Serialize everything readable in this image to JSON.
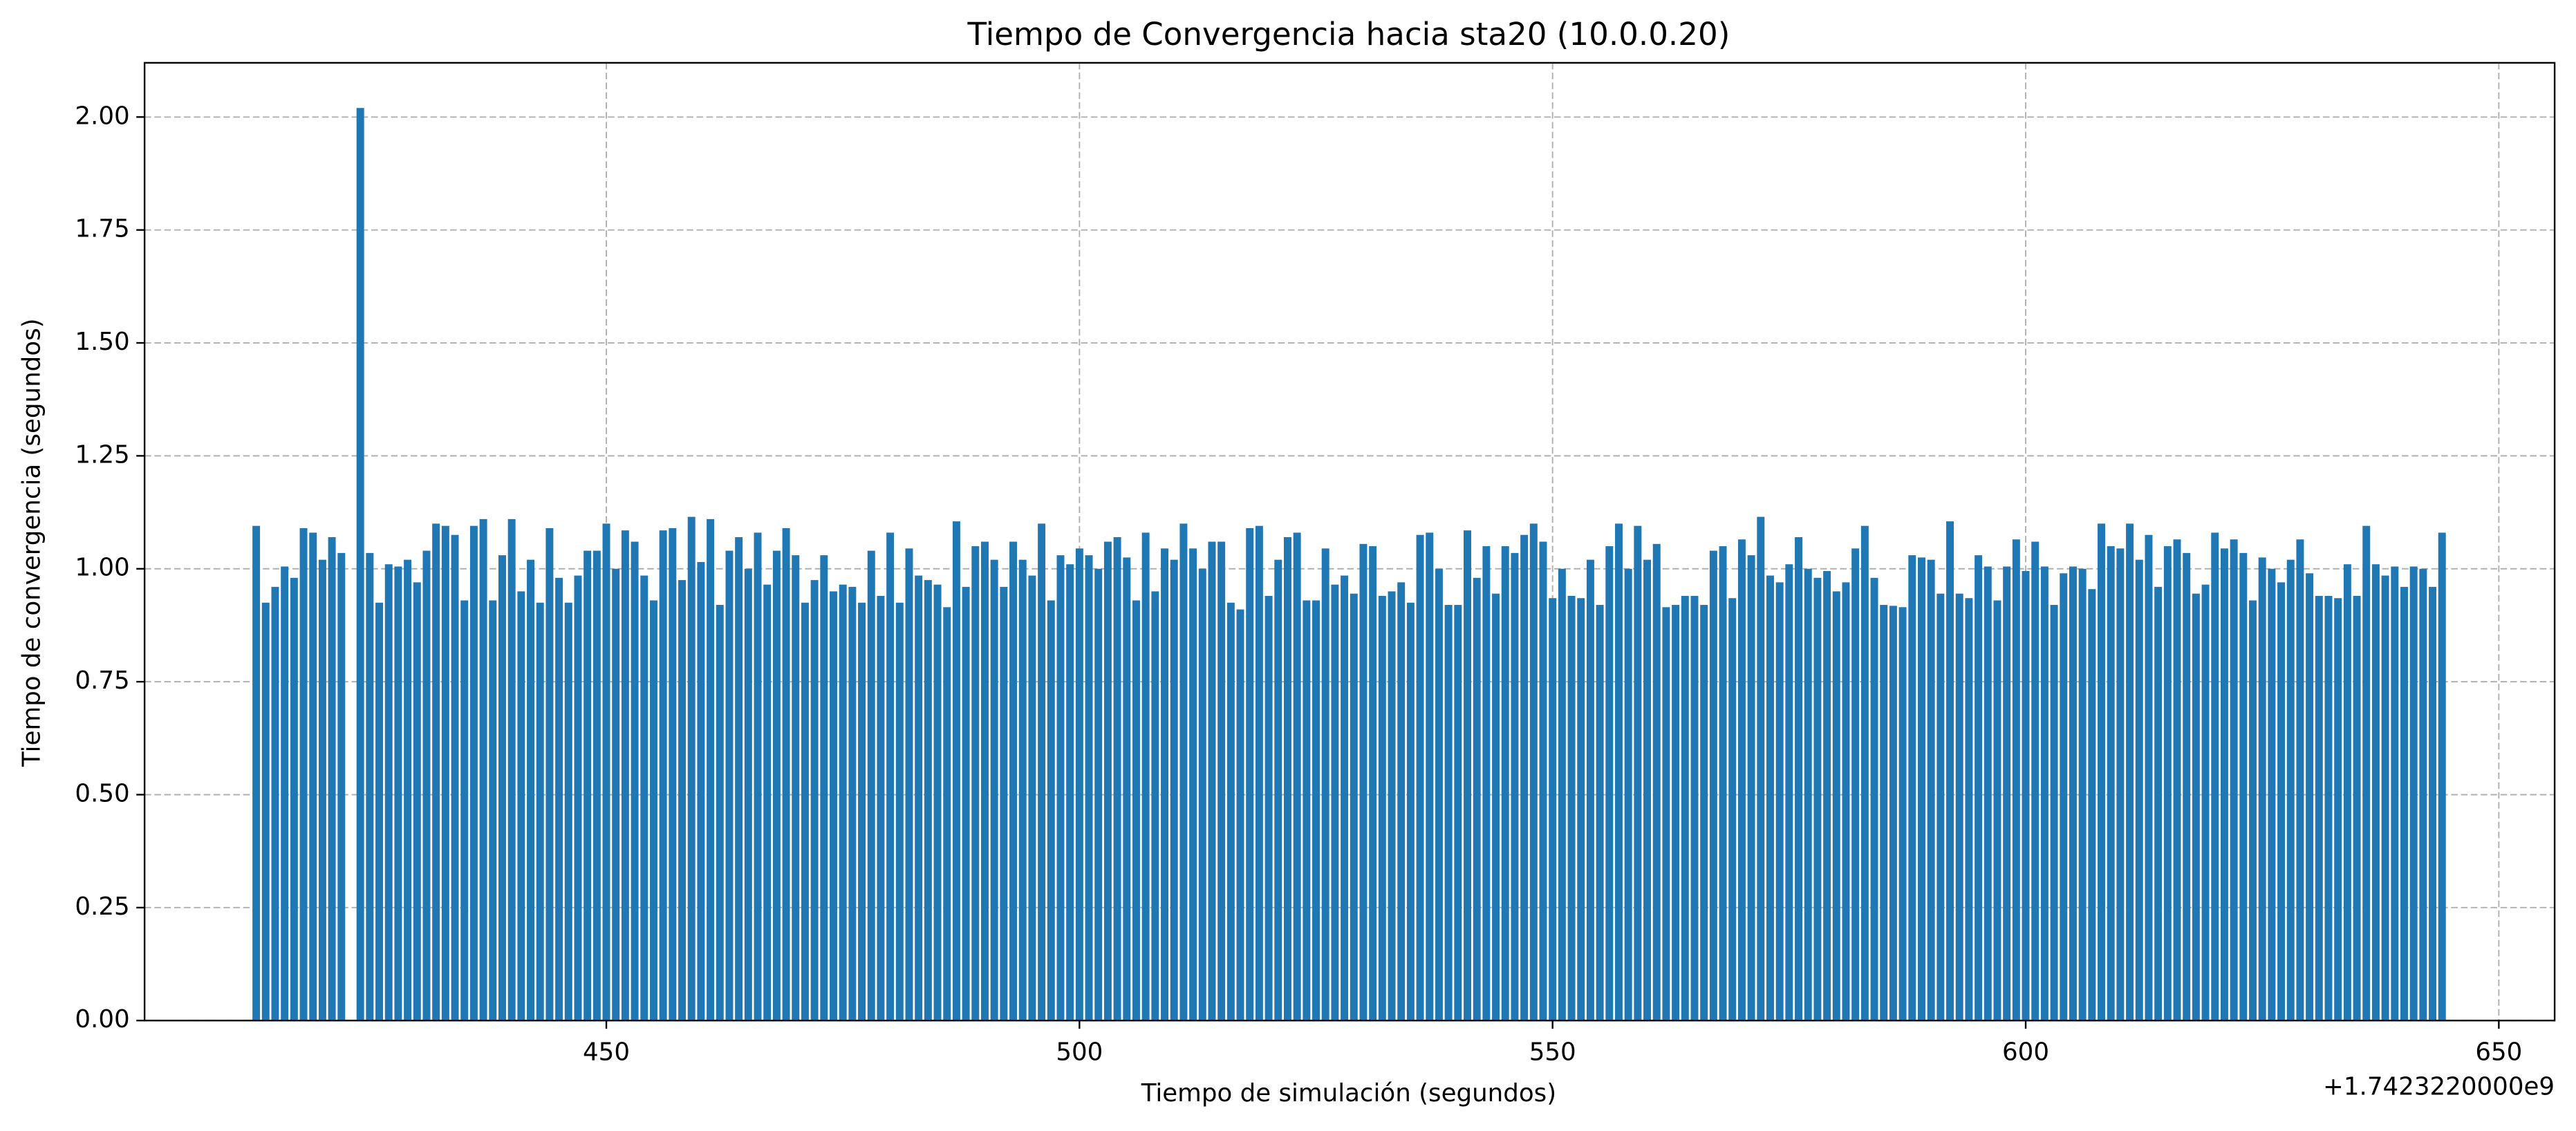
{
  "chart_data": {
    "type": "bar",
    "title": "Tiempo de Convergencia hacia sta20 (10.0.0.20)",
    "xlabel": "Tiempo de simulación (segundos)",
    "ylabel": "Tiempo de convergencia (segundos)",
    "x_offset_label": "+1.7423220000e9",
    "color": "#1f77b4",
    "bar_width": 0.8,
    "grid": true,
    "x": [
      1742322413,
      1742322414,
      1742322415,
      1742322416,
      1742322417,
      1742322418,
      1742322419,
      1742322420,
      1742322421,
      1742322422,
      1742322424,
      1742322425,
      1742322426,
      1742322427,
      1742322428,
      1742322429,
      1742322430,
      1742322431,
      1742322432,
      1742322433,
      1742322434,
      1742322435,
      1742322436,
      1742322437,
      1742322438,
      1742322439,
      1742322440,
      1742322441,
      1742322442,
      1742322443,
      1742322444,
      1742322445,
      1742322446,
      1742322447,
      1742322448,
      1742322449,
      1742322450,
      1742322451,
      1742322452,
      1742322453,
      1742322454,
      1742322455,
      1742322456,
      1742322457,
      1742322458,
      1742322459,
      1742322460,
      1742322461,
      1742322462,
      1742322463,
      1742322464,
      1742322465,
      1742322466,
      1742322467,
      1742322468,
      1742322469,
      1742322470,
      1742322471,
      1742322472,
      1742322473,
      1742322474,
      1742322475,
      1742322476,
      1742322477,
      1742322478,
      1742322479,
      1742322480,
      1742322481,
      1742322482,
      1742322483,
      1742322484,
      1742322485,
      1742322486,
      1742322487,
      1742322488,
      1742322489,
      1742322490,
      1742322491,
      1742322492,
      1742322493,
      1742322494,
      1742322495,
      1742322496,
      1742322497,
      1742322498,
      1742322499,
      1742322500,
      1742322501,
      1742322502,
      1742322503,
      1742322504,
      1742322505,
      1742322506,
      1742322507,
      1742322508,
      1742322509,
      1742322510,
      1742322511,
      1742322512,
      1742322513,
      1742322514,
      1742322515,
      1742322516,
      1742322517,
      1742322518,
      1742322519,
      1742322520,
      1742322521,
      1742322522,
      1742322523,
      1742322524,
      1742322525,
      1742322526,
      1742322527,
      1742322528,
      1742322529,
      1742322530,
      1742322531,
      1742322532,
      1742322533,
      1742322534,
      1742322535,
      1742322536,
      1742322537,
      1742322538,
      1742322539,
      1742322540,
      1742322541,
      1742322542,
      1742322543,
      1742322544,
      1742322545,
      1742322546,
      1742322547,
      1742322548,
      1742322549,
      1742322550,
      1742322551,
      1742322552,
      1742322553,
      1742322554,
      1742322555,
      1742322556,
      1742322557,
      1742322558,
      1742322559,
      1742322560,
      1742322561,
      1742322562,
      1742322563,
      1742322564,
      1742322565,
      1742322566,
      1742322567,
      1742322568,
      1742322569,
      1742322570,
      1742322571,
      1742322572,
      1742322573,
      1742322574,
      1742322575,
      1742322576,
      1742322577,
      1742322578,
      1742322579,
      1742322580,
      1742322581,
      1742322582,
      1742322583,
      1742322584,
      1742322585,
      1742322586,
      1742322587,
      1742322588,
      1742322589,
      1742322590,
      1742322591,
      1742322592,
      1742322593,
      1742322594,
      1742322595,
      1742322596,
      1742322597,
      1742322598,
      1742322599,
      1742322600,
      1742322601,
      1742322602,
      1742322603,
      1742322604,
      1742322605,
      1742322606,
      1742322607,
      1742322608,
      1742322609,
      1742322610,
      1742322611,
      1742322612,
      1742322613,
      1742322614,
      1742322615,
      1742322616,
      1742322617,
      1742322618,
      1742322619,
      1742322620,
      1742322621,
      1742322622,
      1742322623,
      1742322624,
      1742322625,
      1742322626,
      1742322627,
      1742322628,
      1742322629,
      1742322630,
      1742322631,
      1742322632,
      1742322633,
      1742322634,
      1742322635,
      1742322636,
      1742322637,
      1742322638,
      1742322639,
      1742322640,
      1742322641,
      1742322642,
      1742322643,
      1742322644
    ],
    "values": [
      1.095,
      0.925,
      0.96,
      1.005,
      0.98,
      1.09,
      1.08,
      1.02,
      1.07,
      1.035,
      2.02,
      1.035,
      0.925,
      1.01,
      1.005,
      1.02,
      0.97,
      1.04,
      1.1,
      1.095,
      1.075,
      0.93,
      1.095,
      1.11,
      0.93,
      1.03,
      1.11,
      0.95,
      1.02,
      0.925,
      1.09,
      0.98,
      0.925,
      0.985,
      1.04,
      1.04,
      1.1,
      1.0,
      1.085,
      1.06,
      0.985,
      0.93,
      1.085,
      1.09,
      0.975,
      1.115,
      1.015,
      1.11,
      0.92,
      1.04,
      1.07,
      1.0,
      1.08,
      0.965,
      1.04,
      1.09,
      1.03,
      0.925,
      0.975,
      1.03,
      0.95,
      0.965,
      0.96,
      0.925,
      1.04,
      0.94,
      1.08,
      0.925,
      1.045,
      0.985,
      0.975,
      0.965,
      0.915,
      1.105,
      0.96,
      1.05,
      1.06,
      1.02,
      0.96,
      1.06,
      1.02,
      0.985,
      1.1,
      0.93,
      1.03,
      1.01,
      1.045,
      1.03,
      1.0,
      1.06,
      1.07,
      1.025,
      0.93,
      1.08,
      0.95,
      1.045,
      1.02,
      1.1,
      1.045,
      1.0,
      1.06,
      1.06,
      0.925,
      0.91,
      1.09,
      1.095,
      0.94,
      1.02,
      1.07,
      1.08,
      0.93,
      0.93,
      1.045,
      0.965,
      0.985,
      0.945,
      1.055,
      1.05,
      0.94,
      0.95,
      0.97,
      0.925,
      1.075,
      1.08,
      1.0,
      0.92,
      0.92,
      1.085,
      0.98,
      1.05,
      0.945,
      1.05,
      1.035,
      1.075,
      1.1,
      1.06,
      0.935,
      1.0,
      0.94,
      0.935,
      1.02,
      0.92,
      1.05,
      1.1,
      1.0,
      1.095,
      1.02,
      1.055,
      0.915,
      0.92,
      0.94,
      0.94,
      0.92,
      1.04,
      1.05,
      0.935,
      1.065,
      1.03,
      1.115,
      0.985,
      0.97,
      1.01,
      1.07,
      1.0,
      0.98,
      0.995,
      0.95,
      0.97,
      1.045,
      1.095,
      0.98,
      0.92,
      0.918,
      0.915,
      1.03,
      1.025,
      1.02,
      0.945,
      1.105,
      0.945,
      0.935,
      1.03,
      1.005,
      0.93,
      1.005,
      1.065,
      0.995,
      1.06,
      1.005,
      0.92,
      0.99,
      1.005,
      1.0,
      0.955,
      1.1,
      1.05,
      1.045,
      1.1,
      1.02,
      1.075,
      0.96,
      1.05,
      1.065,
      1.035,
      0.945,
      0.965,
      1.08,
      1.045,
      1.065,
      1.035,
      0.93,
      1.025,
      1.0,
      0.97,
      1.02,
      1.065,
      0.99,
      0.94,
      0.94,
      0.935,
      1.01,
      0.94,
      1.095,
      1.01,
      0.985,
      1.005,
      0.96,
      1.005,
      1.0,
      0.96,
      1.08
    ],
    "xlim": [
      1742322401.2,
      1742322655.9
    ],
    "xticks": [
      {
        "value": 1742322450,
        "label": "450"
      },
      {
        "value": 1742322500,
        "label": "500"
      },
      {
        "value": 1742322550,
        "label": "550"
      },
      {
        "value": 1742322600,
        "label": "600"
      },
      {
        "value": 1742322650,
        "label": "650"
      }
    ],
    "ylim": [
      0,
      2.12
    ],
    "yticks": [
      {
        "value": 0,
        "label": "0.00"
      },
      {
        "value": 0.25,
        "label": "0.25"
      },
      {
        "value": 0.5,
        "label": "0.50"
      },
      {
        "value": 0.75,
        "label": "0.75"
      },
      {
        "value": 1,
        "label": "1.00"
      },
      {
        "value": 1.25,
        "label": "1.25"
      },
      {
        "value": 1.5,
        "label": "1.50"
      },
      {
        "value": 1.75,
        "label": "1.75"
      },
      {
        "value": 2,
        "label": "2.00"
      }
    ]
  }
}
